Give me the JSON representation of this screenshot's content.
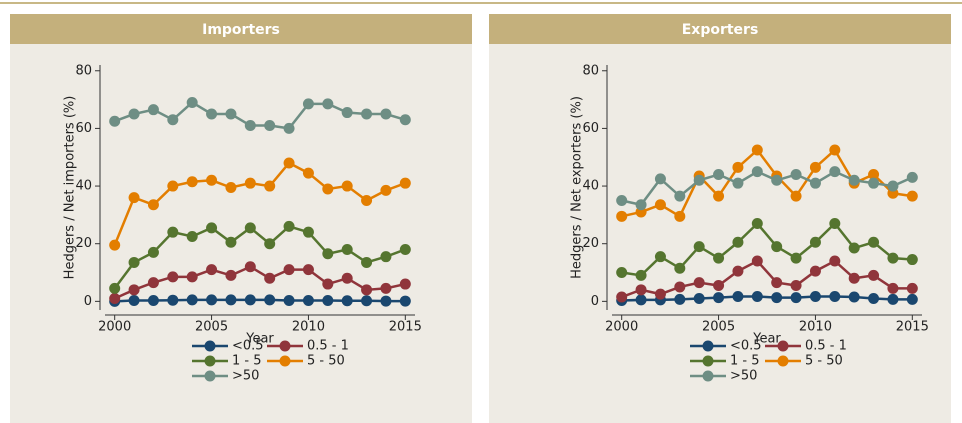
{
  "chart_data": [
    {
      "type": "line",
      "title": "Importers",
      "xlabel": "Year",
      "ylabel": "Hedgers / Net importers (%)",
      "x": [
        2000,
        2001,
        2002,
        2003,
        2004,
        2005,
        2006,
        2007,
        2008,
        2009,
        2010,
        2011,
        2012,
        2013,
        2014,
        2015
      ],
      "xlim": [
        1999.5,
        2015.5
      ],
      "xticks": [
        2000,
        2005,
        2010,
        2015
      ],
      "ylim": [
        -3,
        82
      ],
      "yticks": [
        0,
        20,
        40,
        60,
        80
      ],
      "legend": "bottom",
      "series": [
        {
          "name": "<0.5",
          "color": "#1a476f",
          "values": [
            0,
            0.3,
            0.3,
            0.4,
            0.5,
            0.5,
            0.5,
            0.5,
            0.5,
            0.3,
            0.3,
            0.3,
            0.2,
            0.2,
            0.1,
            0.1
          ]
        },
        {
          "name": "0.5 - 1",
          "color": "#90353b",
          "values": [
            1,
            4,
            6.5,
            8.5,
            8.5,
            11,
            9,
            12,
            8,
            11,
            11,
            6,
            8,
            4,
            4.5,
            6
          ]
        },
        {
          "name": "1 - 5",
          "color": "#55752f",
          "values": [
            4.5,
            13.5,
            17,
            24,
            22.5,
            25.5,
            20.5,
            25.5,
            20,
            26,
            24,
            16.5,
            18,
            13.5,
            15.5,
            18
          ]
        },
        {
          "name": "5 - 50",
          "color": "#e37e00",
          "values": [
            19.5,
            36,
            33.5,
            40,
            41.5,
            42,
            39.5,
            41,
            40,
            48,
            44.5,
            39,
            40,
            35,
            38.5,
            41
          ]
        },
        {
          "name": ">50",
          "color": "#6e8e84",
          "values": [
            62.5,
            65,
            66.5,
            63,
            69,
            65,
            65,
            61,
            61,
            60,
            68.5,
            68.5,
            65.5,
            65,
            65,
            63
          ]
        }
      ]
    },
    {
      "type": "line",
      "title": "Exporters",
      "xlabel": "Year",
      "ylabel": "Hedgers / Net exporters (%)",
      "x": [
        2000,
        2001,
        2002,
        2003,
        2004,
        2005,
        2006,
        2007,
        2008,
        2009,
        2010,
        2011,
        2012,
        2013,
        2014,
        2015
      ],
      "xlim": [
        1999.5,
        2015.5
      ],
      "xticks": [
        2000,
        2005,
        2010,
        2015
      ],
      "ylim": [
        -3,
        82
      ],
      "yticks": [
        0,
        20,
        40,
        60,
        80
      ],
      "legend": "bottom",
      "series": [
        {
          "name": "<0.5",
          "color": "#1a476f",
          "values": [
            0.3,
            0.5,
            0.5,
            0.7,
            1,
            1.3,
            1.7,
            1.7,
            1.3,
            1.3,
            1.7,
            1.7,
            1.5,
            1,
            0.7,
            0.7
          ]
        },
        {
          "name": "0.5 - 1",
          "color": "#90353b",
          "values": [
            1.5,
            4,
            2.5,
            5,
            6.5,
            5.5,
            10.5,
            14,
            6.5,
            5.5,
            10.5,
            14,
            8,
            9,
            4.5,
            4.5
          ]
        },
        {
          "name": "1 - 5",
          "color": "#55752f",
          "values": [
            10,
            9,
            15.5,
            11.5,
            19,
            15,
            20.5,
            27,
            19,
            15,
            20.5,
            27,
            18.5,
            20.5,
            15,
            14.5
          ]
        },
        {
          "name": "5 - 50",
          "color": "#e37e00",
          "values": [
            29.5,
            31,
            33.5,
            29.5,
            43.5,
            36.5,
            46.5,
            52.5,
            43.5,
            36.5,
            46.5,
            52.5,
            41,
            44,
            37.5,
            36.5
          ]
        },
        {
          "name": ">50",
          "color": "#6e8e84",
          "values": [
            35,
            33.5,
            42.5,
            36.5,
            42,
            44,
            41,
            45,
            42,
            44,
            41,
            45,
            42,
            41,
            40,
            43
          ]
        }
      ]
    }
  ]
}
